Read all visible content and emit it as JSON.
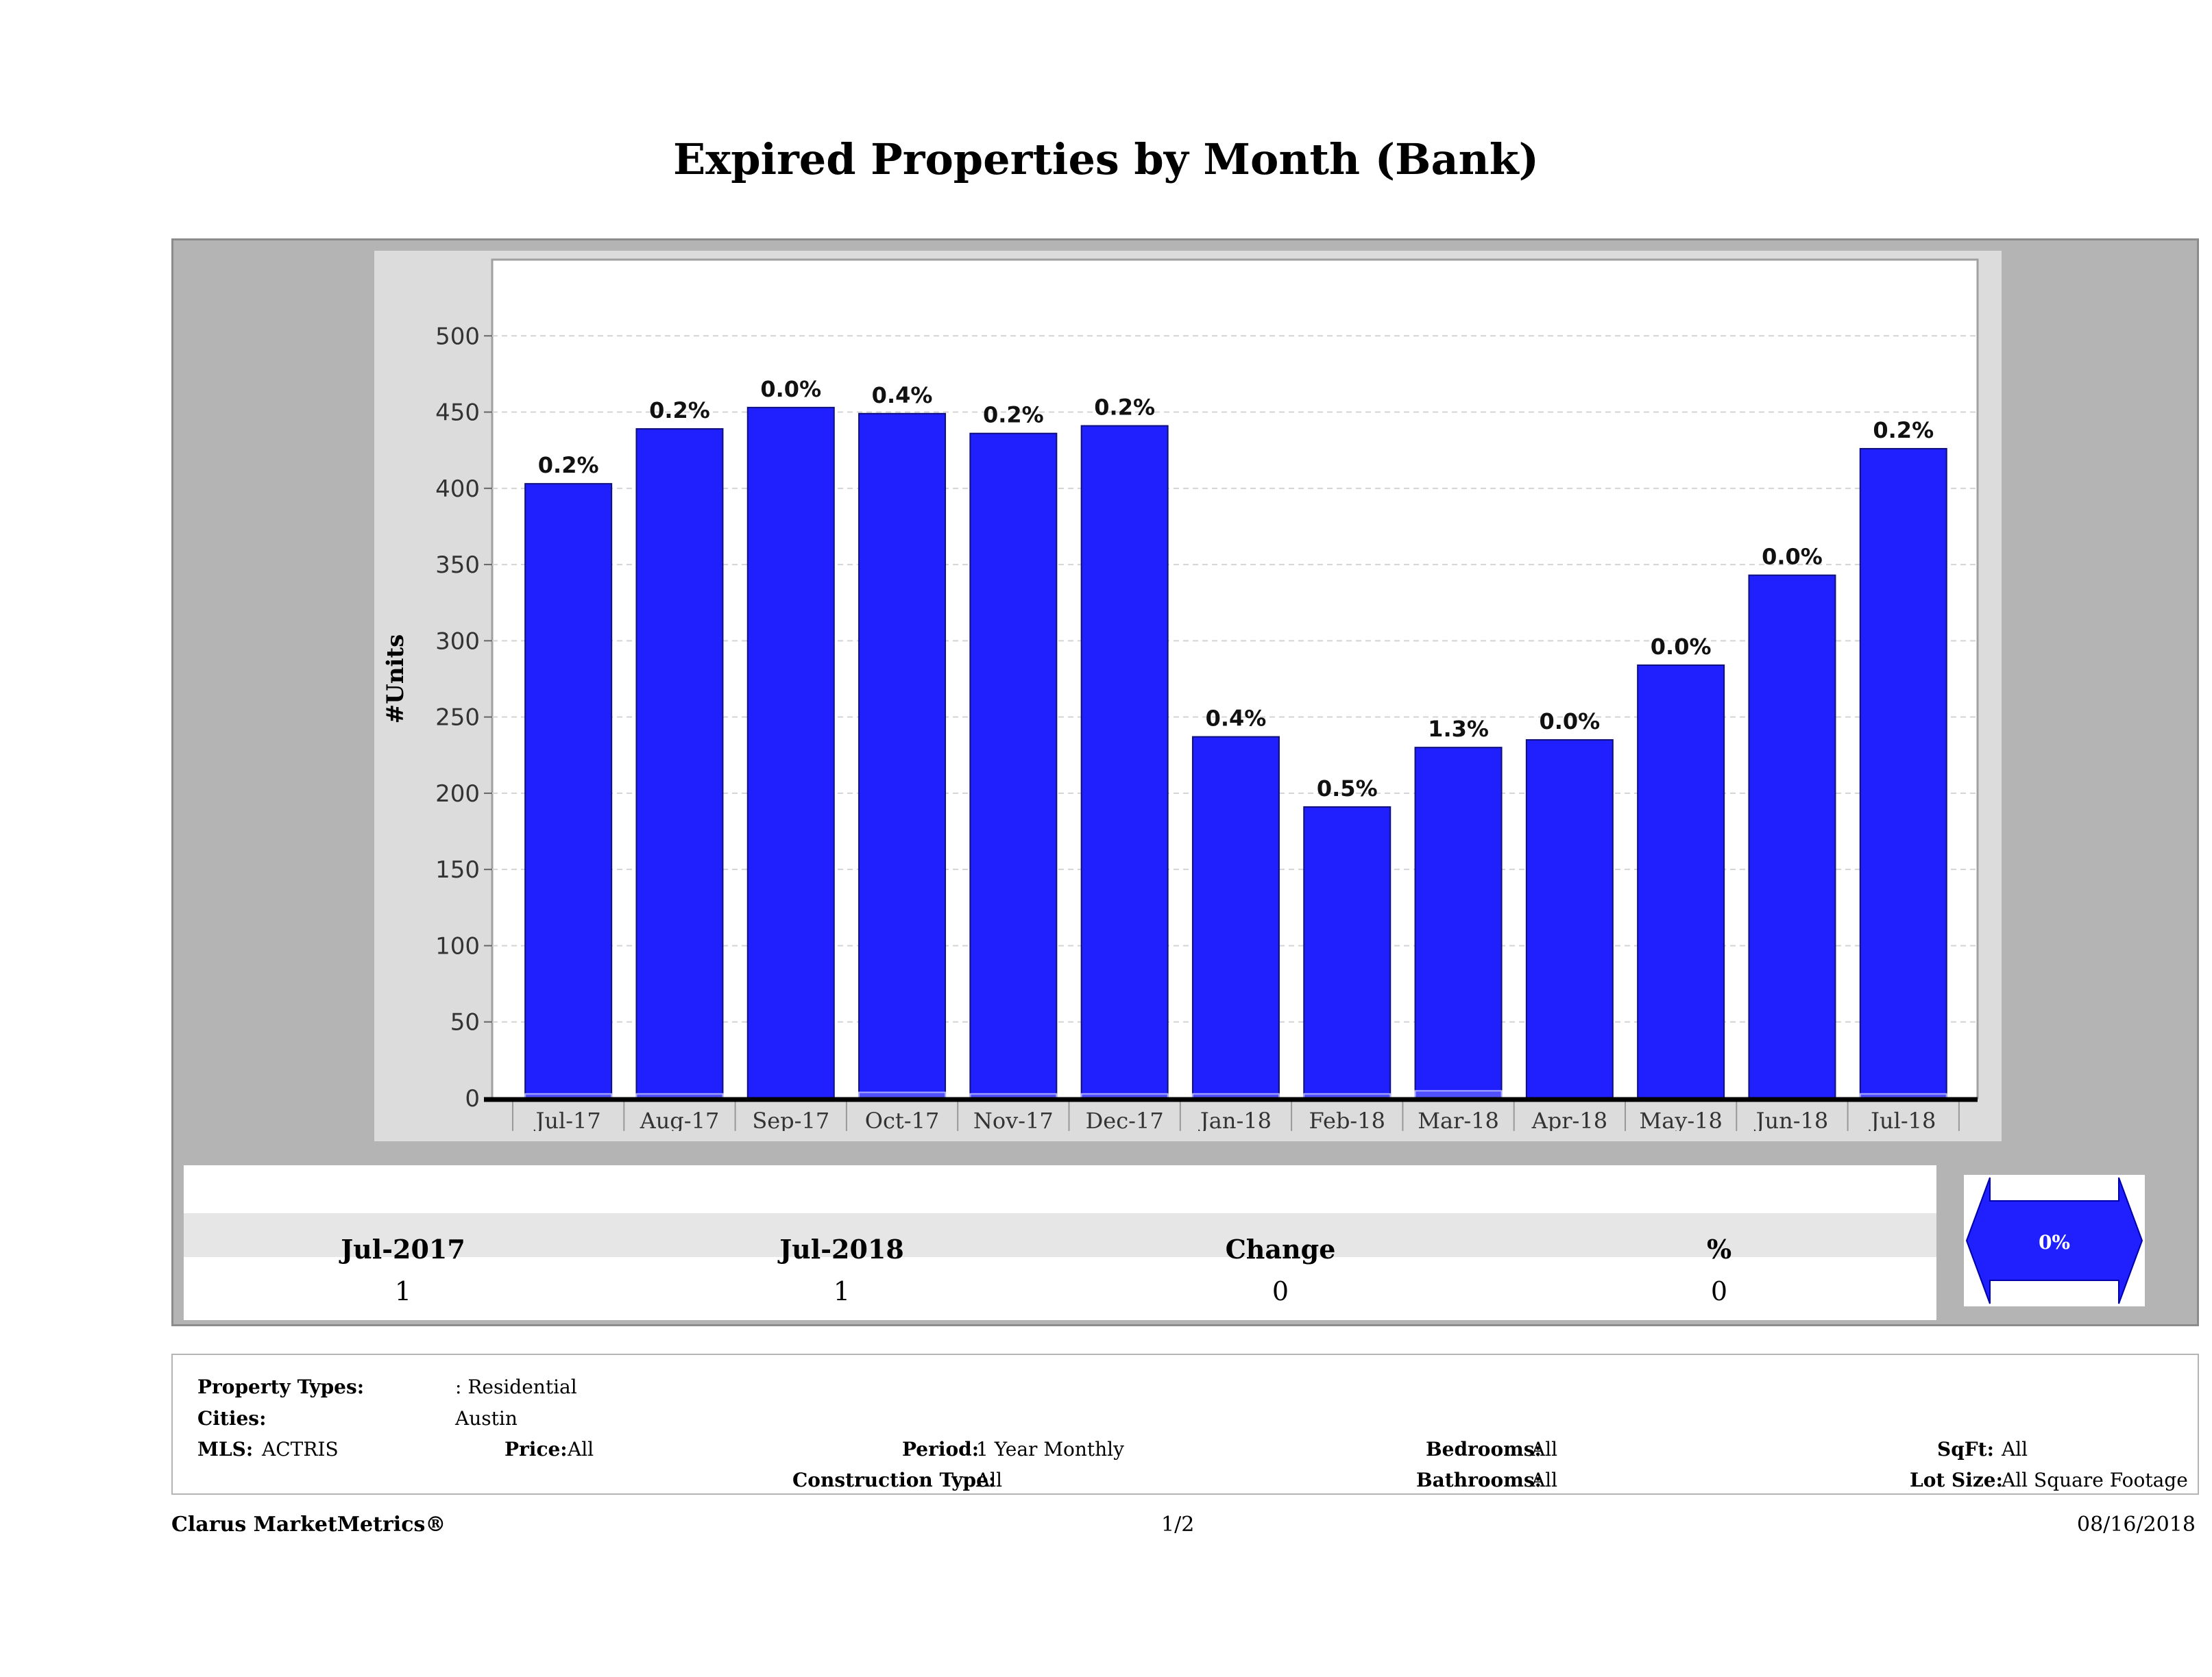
{
  "page_title": "Expired Properties by Month (Bank)",
  "chart_data": {
    "type": "bar",
    "categories": [
      "Jul-17",
      "Aug-17",
      "Sep-17",
      "Oct-17",
      "Nov-17",
      "Dec-17",
      "Jan-18",
      "Feb-18",
      "Mar-18",
      "Apr-18",
      "May-18",
      "Jun-18",
      "Jul-18"
    ],
    "values": [
      403,
      439,
      453,
      449,
      436,
      441,
      237,
      191,
      230,
      235,
      284,
      343,
      426
    ],
    "secondary_values": [
      1,
      1,
      0,
      2,
      1,
      1,
      1,
      1,
      3,
      0,
      0,
      0,
      1
    ],
    "data_labels": [
      "0.2%",
      "0.2%",
      "0.0%",
      "0.4%",
      "0.2%",
      "0.2%",
      "0.4%",
      "0.5%",
      "1.3%",
      "0.0%",
      "0.0%",
      "0.0%",
      "0.2%"
    ],
    "ylabel": "#Units",
    "yticks": [
      0,
      50,
      100,
      150,
      200,
      250,
      300,
      350,
      400,
      450,
      500
    ],
    "ylim": [
      0,
      550
    ],
    "grid": true,
    "bar_color": "#2020ff"
  },
  "summary": {
    "headers": [
      "Jul-2017",
      "Jul-2018",
      "Change",
      "%"
    ],
    "values": [
      "1",
      "1",
      "0",
      "0"
    ],
    "indicator": "0%"
  },
  "criteria": {
    "property_types_label": "Property Types:",
    "property_types_value": ": Residential",
    "cities_label": "Cities:",
    "cities_value": "Austin",
    "mls_label": "MLS:",
    "mls_value": "ACTRIS",
    "price_label": "Price:",
    "price_value": "All",
    "period_label": "Period:",
    "period_value": "1 Year Monthly",
    "construction_label": "Construction Type:",
    "construction_value": "All",
    "bedrooms_label": "Bedrooms:",
    "bedrooms_value": "All",
    "bathrooms_label": "Bathrooms:",
    "bathrooms_value": "All",
    "sqft_label": "SqFt:",
    "sqft_value": "All",
    "lot_label": "Lot Size:",
    "lot_value": "All Square Footage"
  },
  "footer": {
    "brand": "Clarus MarketMetrics®",
    "page": "1/2",
    "date": "08/16/2018"
  }
}
